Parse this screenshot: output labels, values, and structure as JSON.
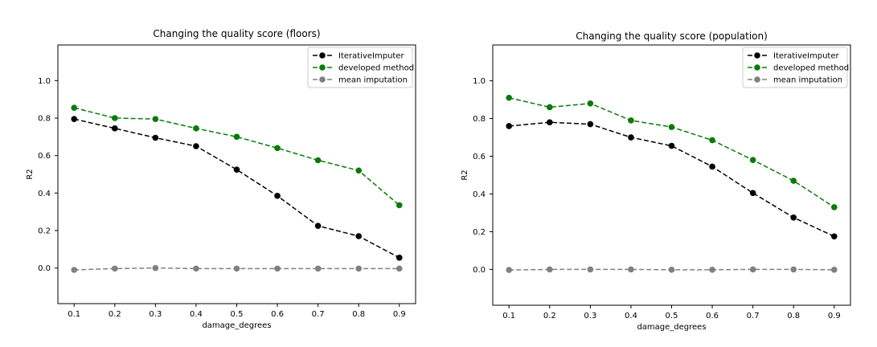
{
  "chart_data": [
    {
      "type": "line",
      "title": "Changing the quality score (floors)",
      "xlabel": "damage_degrees",
      "ylabel": "R2",
      "x": [
        0.1,
        0.2,
        0.3,
        0.4,
        0.5,
        0.6,
        0.7,
        0.8,
        0.9
      ],
      "xticks": [
        "0.1",
        "0.2",
        "0.3",
        "0.4",
        "0.5",
        "0.6",
        "0.7",
        "0.8",
        "0.9"
      ],
      "yticks": [
        "0.0",
        "0.2",
        "0.4",
        "0.6",
        "0.8",
        "1.0"
      ],
      "ylim": [
        -0.19,
        1.19
      ],
      "xlim": [
        0.06,
        0.94
      ],
      "grid": false,
      "legend": "top-right",
      "series": [
        {
          "name": "IterativeImputer",
          "color": "#000000",
          "values": [
            0.795,
            0.745,
            0.695,
            0.65,
            0.525,
            0.385,
            0.225,
            0.17,
            0.055
          ]
        },
        {
          "name": "developed method",
          "color": "#0a7a0a",
          "values": [
            0.855,
            0.8,
            0.795,
            0.745,
            0.7,
            0.64,
            0.575,
            0.52,
            0.335
          ]
        },
        {
          "name": "mean imputation",
          "color": "#808080",
          "values": [
            -0.01,
            -0.003,
            0.0,
            -0.003,
            -0.003,
            -0.003,
            -0.003,
            -0.003,
            -0.003
          ]
        }
      ]
    },
    {
      "type": "line",
      "title": "Changing the quality score (population)",
      "xlabel": "damage_degrees",
      "ylabel": "R2",
      "x": [
        0.1,
        0.2,
        0.3,
        0.4,
        0.5,
        0.6,
        0.7,
        0.8,
        0.9
      ],
      "xticks": [
        "0.1",
        "0.2",
        "0.3",
        "0.4",
        "0.5",
        "0.6",
        "0.7",
        "0.8",
        "0.9"
      ],
      "yticks": [
        "0.0",
        "0.2",
        "0.4",
        "0.6",
        "0.8",
        "1.0"
      ],
      "ylim": [
        -0.19,
        1.19
      ],
      "xlim": [
        0.06,
        0.94
      ],
      "grid": false,
      "legend": "top-right",
      "series": [
        {
          "name": "IterativeImputer",
          "color": "#000000",
          "values": [
            0.76,
            0.78,
            0.77,
            0.7,
            0.655,
            0.545,
            0.405,
            0.275,
            0.175
          ]
        },
        {
          "name": "developed method",
          "color": "#0a7a0a",
          "values": [
            0.91,
            0.86,
            0.88,
            0.79,
            0.755,
            0.685,
            0.58,
            0.47,
            0.33
          ]
        },
        {
          "name": "mean imputation",
          "color": "#808080",
          "values": [
            -0.003,
            0.0,
            0.0,
            0.0,
            -0.002,
            -0.002,
            0.0,
            0.0,
            -0.002
          ]
        }
      ]
    }
  ]
}
